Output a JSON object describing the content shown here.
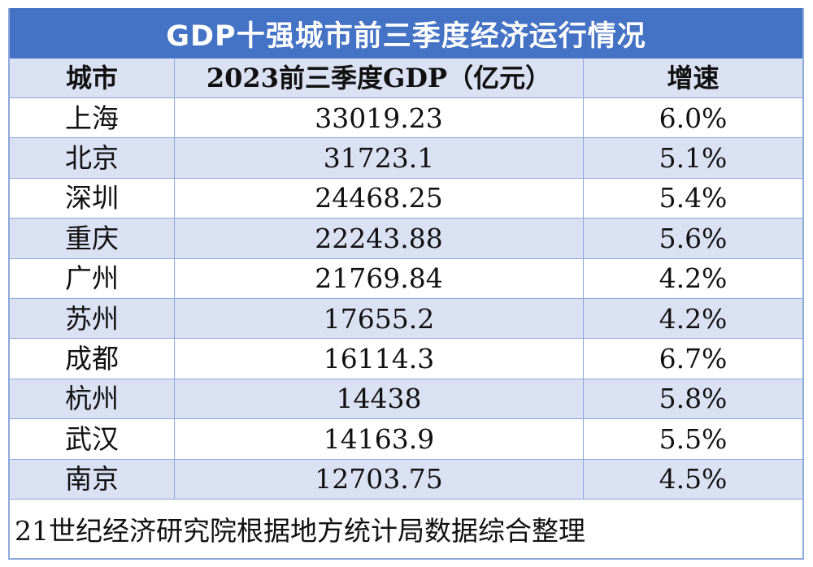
{
  "title": "GDP十强城市前三季度经济运行情况",
  "headers": {
    "city": "城市",
    "gdp": "2023前三季度GDP（亿元）",
    "growth": "增速"
  },
  "rows": [
    {
      "city": "上海",
      "gdp": "33019.23",
      "growth": "6.0%"
    },
    {
      "city": "北京",
      "gdp": "31723.1",
      "growth": "5.1%"
    },
    {
      "city": "深圳",
      "gdp": "24468.25",
      "growth": "5.4%"
    },
    {
      "city": "重庆",
      "gdp": "22243.88",
      "growth": "5.6%"
    },
    {
      "city": "广州",
      "gdp": "21769.84",
      "growth": "4.2%"
    },
    {
      "city": "苏州",
      "gdp": "17655.2",
      "growth": "4.2%"
    },
    {
      "city": "成都",
      "gdp": "16114.3",
      "growth": "6.7%"
    },
    {
      "city": "杭州",
      "gdp": "14438",
      "growth": "5.8%"
    },
    {
      "city": "武汉",
      "gdp": "14163.9",
      "growth": "5.5%"
    },
    {
      "city": "南京",
      "gdp": "12703.75",
      "growth": "4.5%"
    }
  ],
  "footer": "21世纪经济研究院根据地方统计局数据综合整理",
  "colors": {
    "title_bg": "#4472c4",
    "header_bg": "#d9e1f2",
    "alt_row_bg": "#d9e1f2",
    "border": "#8ea9db"
  }
}
